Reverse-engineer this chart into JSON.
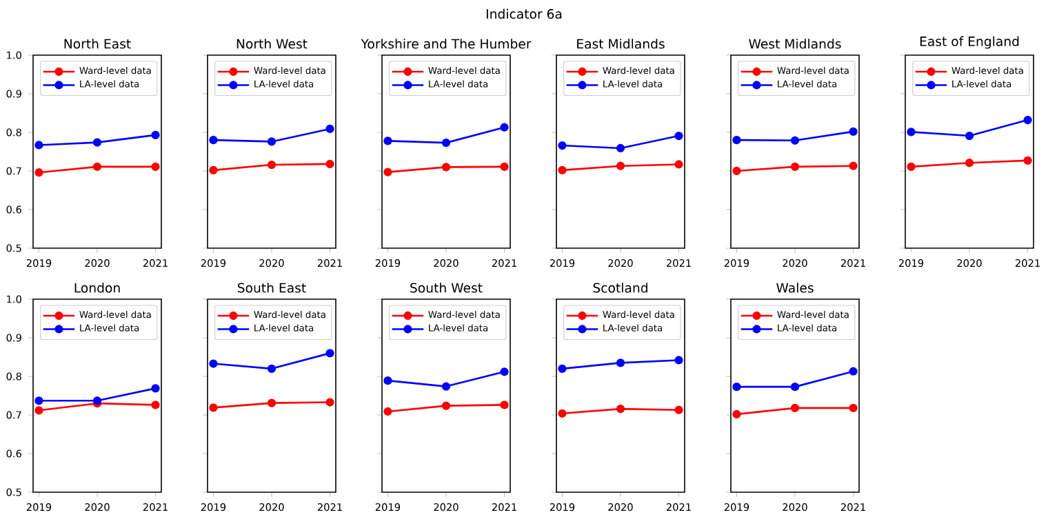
{
  "chart_data": [
    {
      "type": "line",
      "title": "North East",
      "annotations": [
        "Indicator 6a"
      ],
      "x": [
        2019,
        2020,
        2021
      ],
      "xlim": [
        2018.9,
        2021.1
      ],
      "xticks": [
        2019,
        2020,
        2021
      ],
      "ylim": [
        0.5,
        1.0
      ],
      "yticks": [
        0.5,
        0.6,
        0.7,
        0.8,
        0.9,
        {
          "value": 1.0,
          "label": "1.0"
        }
      ],
      "marker": "circle",
      "legend": "top right",
      "series": [
        {
          "name": "Ward-level data",
          "color": "#ff0000",
          "values": [
            0.696,
            0.711,
            0.711
          ]
        },
        {
          "name": "LA-level data",
          "color": "#0000ff",
          "values": [
            0.767,
            0.774,
            0.793
          ]
        }
      ]
    },
    {
      "type": "line",
      "title": "North West",
      "x": [
        2019,
        2020,
        2021
      ],
      "xlim": [
        2018.9,
        2021.1
      ],
      "xticks": [
        2019,
        2020,
        2021
      ],
      "ylim": [
        0.5,
        1.0
      ],
      "yticks": [
        0.5,
        0.6,
        0.7,
        0.8,
        0.9,
        1.0
      ],
      "tick_labels": "x",
      "marker": "circle",
      "legend": "top right",
      "series": [
        {
          "name": "Ward-level data",
          "color": "#ff0000",
          "values": [
            0.702,
            0.716,
            0.718
          ]
        },
        {
          "name": "LA-level data",
          "color": "#0000ff",
          "values": [
            0.78,
            0.776,
            0.809
          ]
        }
      ]
    },
    {
      "type": "line",
      "title": "Yorkshire and The Humber",
      "x": [
        2019,
        2020,
        2021
      ],
      "xlim": [
        2018.9,
        2021.1
      ],
      "xticks": [
        2019,
        2020,
        2021
      ],
      "ylim": [
        0.5,
        1.0
      ],
      "yticks": [
        0.5,
        0.6,
        0.7,
        0.8,
        0.9,
        1.0
      ],
      "tick_labels": "x",
      "marker": "circle",
      "legend": "top right",
      "series": [
        {
          "name": "Ward-level data",
          "color": "#ff0000",
          "values": [
            0.697,
            0.71,
            0.711
          ]
        },
        {
          "name": "LA-level data",
          "color": "#0000ff",
          "values": [
            0.778,
            0.773,
            0.813
          ]
        }
      ]
    },
    {
      "type": "line",
      "title": "East Midlands",
      "x": [
        2019,
        2020,
        2021
      ],
      "xlim": [
        2018.9,
        2021.1
      ],
      "xticks": [
        2019,
        2020,
        2021
      ],
      "ylim": [
        0.5,
        1.0
      ],
      "yticks": [
        0.5,
        0.6,
        0.7,
        0.8,
        0.9,
        1.0
      ],
      "tick_labels": "x",
      "marker": "circle",
      "legend": "top right",
      "series": [
        {
          "name": "Ward-level data",
          "color": "#ff0000",
          "values": [
            0.702,
            0.713,
            0.717
          ]
        },
        {
          "name": "LA-level data",
          "color": "#0000ff",
          "values": [
            0.766,
            0.759,
            0.791
          ]
        }
      ]
    },
    {
      "type": "line",
      "title": "West Midlands",
      "x": [
        2019,
        2020,
        2021
      ],
      "xlim": [
        2018.9,
        2021.1
      ],
      "xticks": [
        2019,
        2020,
        2021
      ],
      "ylim": [
        0.5,
        1.0
      ],
      "yticks": [
        0.5,
        0.6,
        0.7,
        0.8,
        0.9,
        1.0
      ],
      "tick_labels": "x",
      "marker": "circle",
      "legend": "top right",
      "series": [
        {
          "name": "Ward-level data",
          "color": "#ff0000",
          "values": [
            0.7,
            0.711,
            0.713
          ]
        },
        {
          "name": "LA-level data",
          "color": "#0000ff",
          "values": [
            0.78,
            0.779,
            0.802
          ]
        }
      ]
    },
    {
      "type": "line",
      "title": "East of England",
      "x": [
        2019,
        2020,
        2021
      ],
      "xlim": [
        2018.9,
        2021.1
      ],
      "xticks": [
        2019,
        2020,
        2021
      ],
      "ylim": [
        0.5,
        1.0
      ],
      "yticks": [
        0.5,
        0.6,
        0.7,
        0.8,
        0.9,
        1.0
      ],
      "tick_labels": "x",
      "marker": "circle",
      "legend": "top right",
      "series": [
        {
          "name": "Ward-level data",
          "color": "#ff0000",
          "values": [
            0.711,
            0.721,
            0.727
          ]
        },
        {
          "name": "LA-level data",
          "color": "#0000ff",
          "values": [
            0.801,
            0.791,
            0.832
          ]
        }
      ]
    },
    {
      "type": "line",
      "title": "London",
      "x": [
        2019,
        2020,
        2021
      ],
      "xlim": [
        2018.9,
        2021.1
      ],
      "xticks": [
        2019,
        2020,
        2021
      ],
      "ylim": [
        0.5,
        1.0
      ],
      "yticks": [
        0.5,
        0.6,
        0.7,
        0.8,
        0.9,
        {
          "value": 1.0,
          "label": "1.0"
        }
      ],
      "marker": "circle",
      "legend": "top right",
      "series": [
        {
          "name": "Ward-level data",
          "color": "#ff0000",
          "values": [
            0.712,
            0.73,
            0.726
          ]
        },
        {
          "name": "LA-level data",
          "color": "#0000ff",
          "values": [
            0.737,
            0.737,
            0.769
          ]
        }
      ]
    },
    {
      "type": "line",
      "title": "South East",
      "x": [
        2019,
        2020,
        2021
      ],
      "xlim": [
        2018.9,
        2021.1
      ],
      "xticks": [
        2019,
        2020,
        2021
      ],
      "ylim": [
        0.5,
        1.0
      ],
      "yticks": [
        0.5,
        0.6,
        0.7,
        0.8,
        0.9,
        1.0
      ],
      "tick_labels": "x",
      "marker": "circle",
      "legend": "top right",
      "series": [
        {
          "name": "Ward-level data",
          "color": "#ff0000",
          "values": [
            0.719,
            0.731,
            0.733
          ]
        },
        {
          "name": "LA-level data",
          "color": "#0000ff",
          "values": [
            0.833,
            0.82,
            0.86
          ]
        }
      ]
    },
    {
      "type": "line",
      "title": "South West",
      "x": [
        2019,
        2020,
        2021
      ],
      "xlim": [
        2018.9,
        2021.1
      ],
      "xticks": [
        2019,
        2020,
        2021
      ],
      "ylim": [
        0.5,
        1.0
      ],
      "yticks": [
        0.5,
        0.6,
        0.7,
        0.8,
        0.9,
        1.0
      ],
      "tick_labels": "x",
      "marker": "circle",
      "legend": "top right",
      "series": [
        {
          "name": "Ward-level data",
          "color": "#ff0000",
          "values": [
            0.709,
            0.724,
            0.726
          ]
        },
        {
          "name": "LA-level data",
          "color": "#0000ff",
          "values": [
            0.789,
            0.774,
            0.812
          ]
        }
      ]
    },
    {
      "type": "line",
      "title": "Scotland",
      "x": [
        2019,
        2020,
        2021
      ],
      "xlim": [
        2018.9,
        2021.1
      ],
      "xticks": [
        2019,
        2020,
        2021
      ],
      "ylim": [
        0.5,
        1.0
      ],
      "yticks": [
        0.5,
        0.6,
        0.7,
        0.8,
        0.9,
        1.0
      ],
      "tick_labels": "x",
      "marker": "circle",
      "legend": "top right",
      "series": [
        {
          "name": "Ward-level data",
          "color": "#ff0000",
          "values": [
            0.704,
            0.716,
            0.713
          ]
        },
        {
          "name": "LA-level data",
          "color": "#0000ff",
          "values": [
            0.82,
            0.835,
            0.842
          ]
        }
      ]
    },
    {
      "type": "line",
      "title": "Wales",
      "x": [
        2019,
        2020,
        2021
      ],
      "xlim": [
        2018.9,
        2021.1
      ],
      "xticks": [
        2019,
        2020,
        2021
      ],
      "ylim": [
        0.5,
        1.0
      ],
      "yticks": [
        0.5,
        0.6,
        0.7,
        0.8,
        0.9,
        1.0
      ],
      "tick_labels": "x",
      "marker": "circle",
      "legend": "top right",
      "series": [
        {
          "name": "Ward-level data",
          "color": "#ff0000",
          "values": [
            0.702,
            0.718,
            0.718
          ]
        },
        {
          "name": "LA-level data",
          "color": "#0000ff",
          "values": [
            0.773,
            0.773,
            0.813
          ]
        }
      ]
    }
  ]
}
